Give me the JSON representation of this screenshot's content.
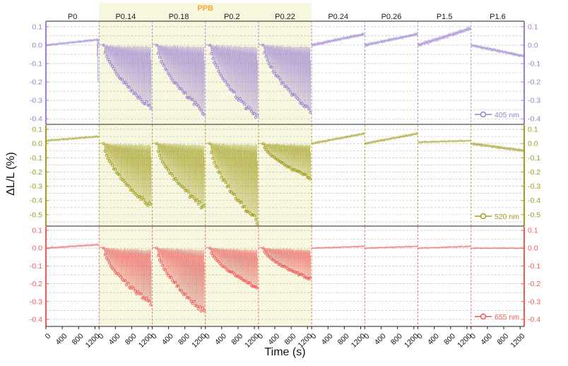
{
  "chart_data": {
    "type": "line",
    "xlabel": "Time (s)",
    "ylabel": "ΔL/L (%)",
    "group_label": "PPB",
    "group_label_color": "#F5A53A",
    "group_periods": [
      1,
      4
    ],
    "highlight_color": "#F7F6DE",
    "x_ticks": [
      "0",
      "400",
      "800",
      "1200"
    ],
    "x_range": [
      0,
      1300
    ],
    "periods": [
      "P0",
      "P0.14",
      "P0.18",
      "P0.2",
      "P0.22",
      "P0.24",
      "P0.26",
      "P1.5",
      "P1.6"
    ],
    "panels": [
      {
        "series_name": "405 nm",
        "color": "#9B7FD0",
        "ylim": [
          -0.43,
          0.13
        ],
        "yticks": [
          0.1,
          0.0,
          -0.1,
          -0.2,
          -0.3,
          -0.4
        ],
        "ytick_labels": [
          "0.1",
          "0.0",
          "-0.1",
          "-0.2",
          "-0.3",
          "-0.4"
        ],
        "grid": true,
        "legend": "bottom-right",
        "profiles": [
          {
            "kind": "drift",
            "start": 0.0,
            "end": 0.03,
            "amp": 0.008,
            "dip": -0.2
          },
          {
            "kind": "spike",
            "depth": 0.34,
            "amp": 0.008
          },
          {
            "kind": "spike",
            "depth": 0.37,
            "amp": 0.008
          },
          {
            "kind": "spike",
            "depth": 0.4,
            "amp": 0.008
          },
          {
            "kind": "spike",
            "depth": 0.36,
            "amp": 0.008
          },
          {
            "kind": "drift",
            "start": 0.0,
            "end": 0.06,
            "amp": 0.012
          },
          {
            "kind": "drift",
            "start": 0.0,
            "end": 0.06,
            "amp": 0.012
          },
          {
            "kind": "drift",
            "start": 0.0,
            "end": 0.09,
            "amp": 0.015
          },
          {
            "kind": "drift",
            "start": 0.0,
            "end": -0.06,
            "amp": 0.012
          }
        ]
      },
      {
        "series_name": "520 nm",
        "color": "#A19D1E",
        "ylim": [
          -0.58,
          0.13
        ],
        "yticks": [
          0.1,
          0.0,
          -0.1,
          -0.2,
          -0.3,
          -0.4,
          -0.5
        ],
        "ytick_labels": [
          "0.1",
          "0.0",
          "-0.1",
          "-0.2",
          "-0.3",
          "-0.4",
          "-0.5"
        ],
        "grid": true,
        "legend": "bottom-right",
        "profiles": [
          {
            "kind": "drift",
            "start": 0.02,
            "end": 0.05,
            "amp": 0.01
          },
          {
            "kind": "spike",
            "depth": 0.45,
            "amp": 0.008
          },
          {
            "kind": "spike",
            "depth": 0.46,
            "amp": 0.008
          },
          {
            "kind": "spike",
            "depth": 0.56,
            "amp": 0.008
          },
          {
            "kind": "spike",
            "depth": 0.24,
            "amp": 0.008
          },
          {
            "kind": "drift",
            "start": 0.0,
            "end": 0.07,
            "amp": 0.012
          },
          {
            "kind": "drift",
            "start": 0.0,
            "end": 0.07,
            "amp": 0.012
          },
          {
            "kind": "drift",
            "start": 0.01,
            "end": 0.02,
            "amp": 0.008
          },
          {
            "kind": "drift",
            "start": 0.0,
            "end": -0.05,
            "amp": 0.015
          }
        ]
      },
      {
        "series_name": "655 nm",
        "color": "#F05A5A",
        "ylim": [
          -0.44,
          0.12
        ],
        "yticks": [
          0.1,
          0.0,
          -0.1,
          -0.2,
          -0.3,
          -0.4
        ],
        "ytick_labels": [
          "0.1",
          "0.0",
          "-0.1",
          "-0.2",
          "-0.3",
          "-0.4"
        ],
        "grid": true,
        "legend": "bottom-right",
        "profiles": [
          {
            "kind": "drift",
            "start": 0.0,
            "end": 0.02,
            "amp": 0.006
          },
          {
            "kind": "spike",
            "depth": 0.31,
            "amp": 0.006
          },
          {
            "kind": "spike",
            "depth": 0.36,
            "amp": 0.006
          },
          {
            "kind": "spike",
            "depth": 0.22,
            "amp": 0.006
          },
          {
            "kind": "spike",
            "depth": 0.17,
            "amp": 0.006
          },
          {
            "kind": "drift",
            "start": 0.0,
            "end": 0.01,
            "amp": 0.005
          },
          {
            "kind": "drift",
            "start": 0.0,
            "end": 0.01,
            "amp": 0.005
          },
          {
            "kind": "drift",
            "start": 0.0,
            "end": 0.01,
            "amp": 0.005
          },
          {
            "kind": "drift",
            "start": 0.0,
            "end": 0.0,
            "amp": 0.005
          }
        ]
      }
    ]
  }
}
